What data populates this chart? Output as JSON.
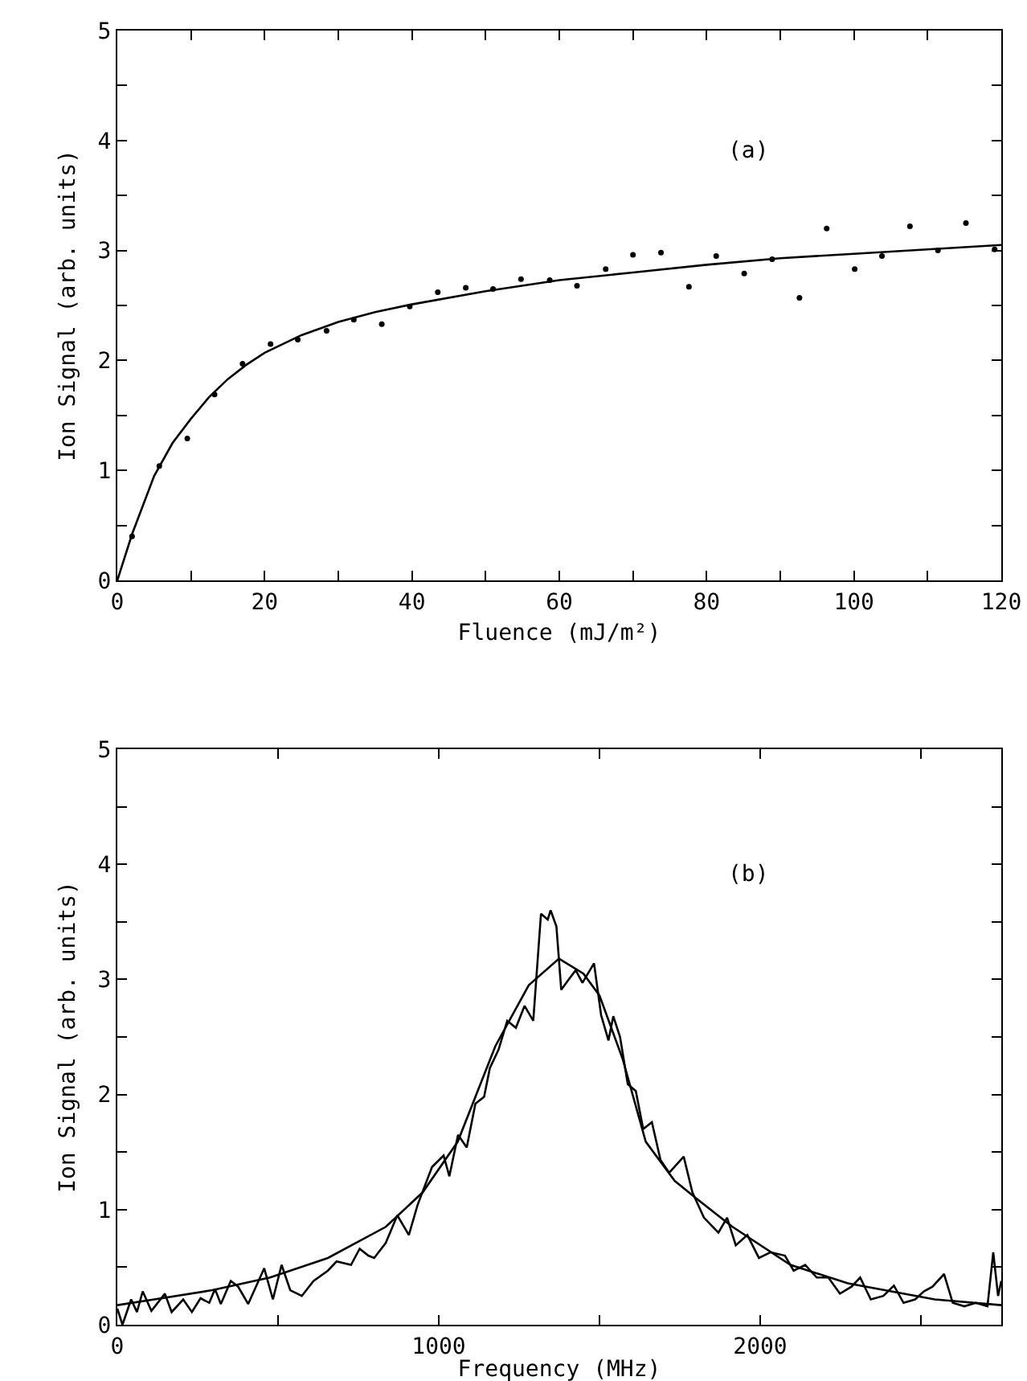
{
  "chart_data": [
    {
      "type": "scatter",
      "xlabel": "Fluence (mJ/m²)",
      "ylabel": "Ion Signal (arb. units)",
      "annotations": [
        "(a)"
      ],
      "xlim": [
        0,
        120
      ],
      "xticks": [
        0,
        {
          "value": 10,
          "label": null
        },
        20,
        {
          "value": 30,
          "label": null
        },
        40,
        {
          "value": 50,
          "label": null
        },
        60,
        {
          "value": 70,
          "label": null
        },
        80,
        {
          "value": 90,
          "label": null
        },
        100,
        {
          "value": 110,
          "label": null
        },
        120
      ],
      "ylim": [
        0,
        5
      ],
      "yticks": [
        0,
        {
          "value": 0.5,
          "label": null
        },
        1,
        {
          "value": 1.5,
          "label": null
        },
        2,
        {
          "value": 2.5,
          "label": null
        },
        3,
        {
          "value": 3.5,
          "label": null
        },
        4,
        {
          "value": 4.5,
          "label": null
        },
        5
      ],
      "series": [
        {
          "color": "#000000",
          "x": [
            2.0,
            5.7,
            9.5,
            13.2,
            17.0,
            20.8,
            24.5,
            28.4,
            32.1,
            35.9,
            39.7,
            43.5,
            47.3,
            51.0,
            54.8,
            58.7,
            62.4,
            66.3,
            70.0,
            73.8,
            77.6,
            81.3,
            85.1,
            88.9,
            92.6,
            96.3,
            100.1,
            103.8,
            107.6,
            111.4,
            115.2,
            119.1
          ],
          "values": [
            0.4,
            1.04,
            1.29,
            1.69,
            1.97,
            2.15,
            2.19,
            2.27,
            2.37,
            2.33,
            2.49,
            2.62,
            2.66,
            2.65,
            2.74,
            2.73,
            2.68,
            2.83,
            2.96,
            2.98,
            2.67,
            2.95,
            2.79,
            2.92,
            2.57,
            3.2,
            2.83,
            2.95,
            3.22,
            3.0,
            3.25,
            3.01
          ]
        },
        {
          "type": "line",
          "color": "#000000",
          "x": [
            0,
            2,
            5,
            7.5,
            10,
            12.5,
            15,
            17.5,
            20,
            25,
            30,
            35,
            40,
            50,
            60,
            70,
            80,
            90,
            100,
            110,
            120
          ],
          "values": [
            0,
            0.42,
            0.95,
            1.25,
            1.47,
            1.67,
            1.83,
            1.96,
            2.07,
            2.23,
            2.35,
            2.44,
            2.51,
            2.63,
            2.73,
            2.8,
            2.87,
            2.93,
            2.97,
            3.01,
            3.05
          ]
        }
      ]
    },
    {
      "type": "line",
      "xlabel": "Frequency (MHz)",
      "ylabel": "Ion Signal (arb. units)",
      "annotations": [
        "(b)"
      ],
      "xlim": [
        0,
        2750
      ],
      "xticks": [
        0,
        {
          "value": 500,
          "label": null
        },
        1000,
        {
          "value": 1500,
          "label": null
        },
        2000,
        {
          "value": 2500,
          "label": null
        }
      ],
      "ylim": [
        0,
        5
      ],
      "yticks": [
        0,
        {
          "value": 0.5,
          "label": null
        },
        1,
        {
          "value": 1.5,
          "label": null
        },
        2,
        {
          "value": 2.5,
          "label": null
        },
        3,
        {
          "value": 3.5,
          "label": null
        },
        4,
        {
          "value": 4.5,
          "label": null
        },
        5
      ],
      "series": [
        {
          "color": "#000000",
          "x": [
            0,
            16,
            43,
            61,
            79,
            106,
            148,
            169,
            205,
            232,
            259,
            286,
            304,
            322,
            353,
            376,
            407,
            457,
            484,
            511,
            538,
            574,
            610,
            655,
            682,
            727,
            754,
            781,
            799,
            835,
            871,
            907,
            934,
            979,
            1015,
            1033,
            1060,
            1087,
            1114,
            1141,
            1159,
            1186,
            1213,
            1240,
            1267,
            1294,
            1318,
            1339,
            1348,
            1366,
            1381,
            1402,
            1426,
            1447,
            1483,
            1505,
            1528,
            1543,
            1564,
            1588,
            1613,
            1636,
            1663,
            1690,
            1717,
            1762,
            1789,
            1825,
            1870,
            1897,
            1924,
            1960,
            1996,
            2032,
            2077,
            2104,
            2140,
            2176,
            2212,
            2248,
            2284,
            2311,
            2344,
            2383,
            2416,
            2446,
            2482,
            2509,
            2536,
            2572,
            2599,
            2635,
            2671,
            2707,
            2725,
            2740,
            2750
          ],
          "values": [
            0.14,
            0,
            0.22,
            0.11,
            0.29,
            0.12,
            0.27,
            0.11,
            0.22,
            0.11,
            0.23,
            0.19,
            0.31,
            0.18,
            0.38,
            0.33,
            0.18,
            0.49,
            0.22,
            0.52,
            0.3,
            0.25,
            0.38,
            0.47,
            0.55,
            0.52,
            0.66,
            0.6,
            0.58,
            0.71,
            0.95,
            0.78,
            1.04,
            1.37,
            1.47,
            1.29,
            1.65,
            1.54,
            1.92,
            1.98,
            2.23,
            2.39,
            2.64,
            2.58,
            2.77,
            2.64,
            3.57,
            3.52,
            3.6,
            3.46,
            2.91,
            2.99,
            3.08,
            2.97,
            3.14,
            2.69,
            2.47,
            2.68,
            2.5,
            2.09,
            2.03,
            1.7,
            1.76,
            1.43,
            1.32,
            1.46,
            1.15,
            0.93,
            0.8,
            0.93,
            0.69,
            0.78,
            0.58,
            0.63,
            0.6,
            0.47,
            0.52,
            0.41,
            0.41,
            0.27,
            0.33,
            0.41,
            0.22,
            0.25,
            0.34,
            0.19,
            0.22,
            0.29,
            0.33,
            0.44,
            0.19,
            0.16,
            0.19,
            0.16,
            0.63,
            0.25,
            0.38
          ]
        },
        {
          "color": "#000000",
          "x": [
            0,
            115,
            295,
            475,
            655,
            835,
            950,
            1059,
            1176,
            1280,
            1374,
            1450,
            1500,
            1572,
            1644,
            1734,
            1800,
            1914,
            2094,
            2273,
            2543,
            2750
          ],
          "values": [
            0.17,
            0.22,
            0.3,
            0.41,
            0.58,
            0.85,
            1.15,
            1.59,
            2.42,
            2.95,
            3.18,
            3.05,
            2.86,
            2.31,
            1.59,
            1.25,
            1.1,
            0.85,
            0.52,
            0.36,
            0.22,
            0.17
          ]
        }
      ]
    }
  ]
}
